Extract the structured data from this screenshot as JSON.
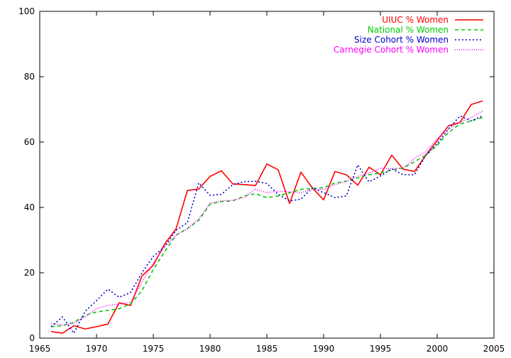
{
  "chart_data": {
    "type": "line",
    "xlim": [
      1965,
      2005
    ],
    "ylim": [
      0,
      100
    ],
    "xticks": [
      1965,
      1970,
      1975,
      1980,
      1985,
      1990,
      1995,
      2000,
      2005
    ],
    "yticks": [
      0,
      20,
      40,
      60,
      80,
      100
    ],
    "grid": false,
    "legend_position": "top-right",
    "series": [
      {
        "name": "UIUC % Women",
        "color": "#ff0000",
        "dash": "solid",
        "x": [
          1966,
          1967,
          1968,
          1969,
          1970,
          1971,
          1972,
          1973,
          1974,
          1975,
          1976,
          1977,
          1978,
          1979,
          1980,
          1981,
          1982,
          1983,
          1984,
          1985,
          1986,
          1987,
          1988,
          1989,
          1990,
          1991,
          1992,
          1993,
          1994,
          1995,
          1996,
          1997,
          1998,
          1999,
          2000,
          2001,
          2002,
          2003,
          2004
        ],
        "y": [
          2,
          1.5,
          3.8,
          2.8,
          3.5,
          4.3,
          10.8,
          10,
          19,
          22.3,
          28.8,
          33.4,
          45.2,
          45.6,
          49.5,
          51.2,
          47.2,
          47,
          46.7,
          53.3,
          51.5,
          41.2,
          50.8,
          46,
          42.3,
          51,
          50,
          46.8,
          52.3,
          50,
          56,
          51.7,
          51,
          56,
          60.5,
          65,
          66,
          71.5,
          72.6
        ]
      },
      {
        "name": "National % Women",
        "color": "#00cc00",
        "dash": "5,4",
        "x": [
          1966,
          1967,
          1968,
          1969,
          1970,
          1971,
          1972,
          1973,
          1974,
          1975,
          1976,
          1977,
          1978,
          1979,
          1980,
          1981,
          1982,
          1983,
          1984,
          1985,
          1986,
          1987,
          1988,
          1989,
          1990,
          1991,
          1992,
          1993,
          1994,
          1995,
          1996,
          1997,
          1998,
          1999,
          2000,
          2001,
          2002,
          2003,
          2004
        ],
        "y": [
          3.5,
          3.8,
          4.8,
          7,
          8,
          8.5,
          9,
          10.5,
          14.5,
          21,
          26.5,
          31.5,
          33.5,
          36,
          41,
          41.8,
          42,
          43.5,
          44.2,
          43,
          43.5,
          44.5,
          45.5,
          45.8,
          46,
          47.5,
          48,
          49,
          50,
          50.5,
          51.5,
          52,
          54,
          56,
          59,
          63,
          65.5,
          66.5,
          67.5
        ]
      },
      {
        "name": "Size Cohort % Women",
        "color": "#0000cc",
        "dash": "2,3",
        "x": [
          1966,
          1967,
          1968,
          1969,
          1970,
          1971,
          1972,
          1973,
          1974,
          1975,
          1976,
          1977,
          1978,
          1979,
          1980,
          1981,
          1982,
          1983,
          1984,
          1985,
          1986,
          1987,
          1988,
          1989,
          1990,
          1991,
          1992,
          1993,
          1994,
          1995,
          1996,
          1997,
          1998,
          1999,
          2000,
          2001,
          2002,
          2003,
          2004
        ],
        "y": [
          3.5,
          6.5,
          1.5,
          8.2,
          11.5,
          15,
          12.5,
          14,
          20,
          25,
          28,
          33,
          35.3,
          47.5,
          43.7,
          44,
          47,
          47.9,
          48,
          47.3,
          44,
          42,
          42.5,
          46,
          44.5,
          43,
          43.5,
          53,
          47.8,
          49.6,
          51.8,
          50,
          50,
          56,
          59.5,
          64,
          68,
          66.5,
          68
        ]
      },
      {
        "name": "Carnegie Cohort % Women",
        "color": "#ff00ff",
        "dash": "1,2",
        "x": [
          1966,
          1967,
          1968,
          1969,
          1970,
          1971,
          1972,
          1973,
          1974,
          1975,
          1976,
          1977,
          1978,
          1979,
          1980,
          1981,
          1982,
          1983,
          1984,
          1985,
          1986,
          1987,
          1988,
          1989,
          1990,
          1991,
          1992,
          1993,
          1994,
          1995,
          1996,
          1997,
          1998,
          1999,
          2000,
          2001,
          2002,
          2003,
          2004
        ],
        "y": [
          4.5,
          4,
          4.5,
          6.5,
          9,
          10,
          10.3,
          11,
          17,
          23,
          28,
          31.5,
          33.5,
          36.5,
          41.3,
          42,
          42.2,
          43,
          45.6,
          44.5,
          45,
          44.8,
          44.5,
          45.5,
          45.5,
          47,
          48,
          49.5,
          50.5,
          52,
          51.8,
          52,
          55,
          57,
          61,
          64,
          66,
          67.5,
          69.5
        ]
      }
    ]
  }
}
